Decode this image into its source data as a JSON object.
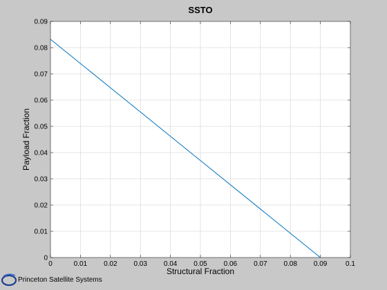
{
  "chart_data": {
    "type": "line",
    "title": "SSTO",
    "xlabel": "Structural Fraction",
    "ylabel": "Payload Fraction",
    "xlim": [
      0,
      0.1
    ],
    "ylim": [
      0,
      0.09
    ],
    "x_ticks": [
      "0",
      "0.01",
      "0.02",
      "0.03",
      "0.04",
      "0.05",
      "0.06",
      "0.07",
      "0.08",
      "0.09",
      "0.1"
    ],
    "y_ticks": [
      "0",
      "0.01",
      "0.02",
      "0.03",
      "0.04",
      "0.05",
      "0.06",
      "0.07",
      "0.08",
      "0.09"
    ],
    "grid": true,
    "series": [
      {
        "x": [
          0,
          0.09
        ],
        "y": [
          0.0832,
          0
        ],
        "color": "#0072bd"
      }
    ]
  },
  "logo": {
    "text": "Princeton Satellite Systems",
    "icon": "psslogo-icon",
    "color": "#1f3f8f"
  }
}
